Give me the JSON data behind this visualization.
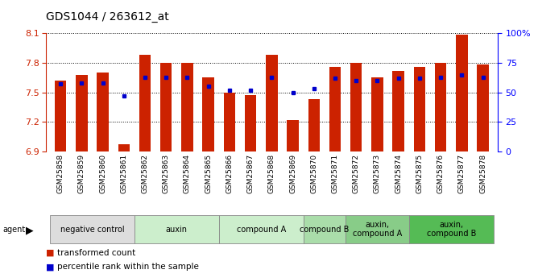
{
  "title": "GDS1044 / 263612_at",
  "samples": [
    "GSM25858",
    "GSM25859",
    "GSM25860",
    "GSM25861",
    "GSM25862",
    "GSM25863",
    "GSM25864",
    "GSM25865",
    "GSM25866",
    "GSM25867",
    "GSM25868",
    "GSM25869",
    "GSM25870",
    "GSM25871",
    "GSM25872",
    "GSM25873",
    "GSM25874",
    "GSM25875",
    "GSM25876",
    "GSM25877",
    "GSM25878"
  ],
  "bar_values": [
    7.62,
    7.68,
    7.7,
    6.97,
    7.88,
    7.8,
    7.8,
    7.65,
    7.5,
    7.47,
    7.88,
    7.22,
    7.43,
    7.76,
    7.8,
    7.65,
    7.72,
    7.76,
    7.8,
    8.09,
    7.78
  ],
  "percentile_values": [
    57,
    58,
    58,
    47,
    63,
    63,
    63,
    55,
    52,
    52,
    63,
    50,
    53,
    62,
    60,
    60,
    62,
    62,
    63,
    65,
    63
  ],
  "ymin": 6.9,
  "ymax": 8.1,
  "yticks": [
    6.9,
    7.2,
    7.5,
    7.8,
    8.1
  ],
  "right_yticks": [
    0,
    25,
    50,
    75,
    100
  ],
  "groups": [
    {
      "label": "negative control",
      "start": 0,
      "end": 4,
      "color": "#dddddd"
    },
    {
      "label": "auxin",
      "start": 4,
      "end": 8,
      "color": "#cceecc"
    },
    {
      "label": "compound A",
      "start": 8,
      "end": 12,
      "color": "#cceecc"
    },
    {
      "label": "compound B",
      "start": 12,
      "end": 14,
      "color": "#aaddaa"
    },
    {
      "label": "auxin,\ncompound A",
      "start": 14,
      "end": 17,
      "color": "#88cc88"
    },
    {
      "label": "auxin,\ncompound B",
      "start": 17,
      "end": 21,
      "color": "#55bb55"
    }
  ],
  "bar_color": "#cc2200",
  "dot_color": "#0000cc",
  "bar_width": 0.55,
  "grid_color": "black",
  "grid_linewidth": 0.7
}
